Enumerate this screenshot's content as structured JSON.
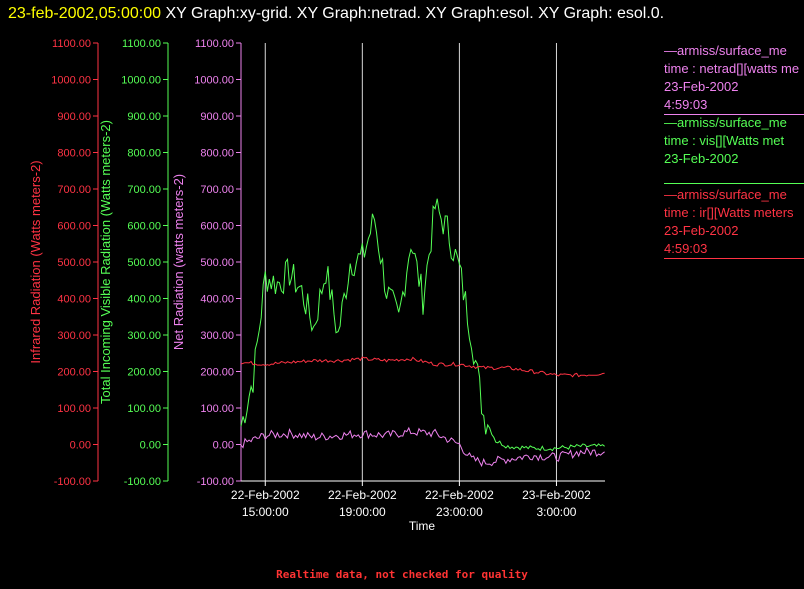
{
  "header": {
    "timestamp": "23-feb-2002,05:00:00",
    "title": " XY Graph:xy-grid.  XY Graph:netrad.  XY Graph:esol.  XY Graph: esol.0."
  },
  "legend": [
    {
      "line1": "—armiss/surface_me",
      "line2": "time : netrad[][watts me",
      "line3": "23-Feb-2002",
      "line4": "4:59:03",
      "color": "#ee82ee"
    },
    {
      "line1": "—armiss/surface_me",
      "line2": "time : vis[][Watts met",
      "line3": "23-Feb-2002",
      "line4": "",
      "color": "#55ff55"
    },
    {
      "line1": "—armiss/surface_me",
      "line2": "time : ir[][Watts meters",
      "line3": "23-Feb-2002",
      "line4": "4:59:03",
      "color": "#ff3344"
    }
  ],
  "footer": "Realtime data, not checked for quality",
  "chart_data": {
    "type": "line",
    "xlabel": "Time",
    "x_ticks": [
      "22-Feb-2002 15:00:00",
      "22-Feb-2002 19:00:00",
      "22-Feb-2002 23:00:00",
      "23-Feb-2002 3:00:00"
    ],
    "x_range": [
      "22-Feb-2002 14:00",
      "23-Feb-2002 5:00"
    ],
    "grid": "vertical lines at x ticks",
    "axes": [
      {
        "label": "Infrared Radiation (Watts meters-2)",
        "color": "#ff3344",
        "ylim": [
          -100,
          1100
        ]
      },
      {
        "label": "Total Incoming Visible Radiation (Watts meters-2)",
        "color": "#55ff55",
        "ylim": [
          -100,
          1100
        ]
      },
      {
        "label": "Net Radiation (watts meters-2)",
        "color": "#ee82ee",
        "ylim": [
          -100,
          1100
        ]
      }
    ],
    "y_ticks": [
      "-100.00",
      "0.00",
      "100.00",
      "200.00",
      "300.00",
      "400.00",
      "500.00",
      "600.00",
      "700.00",
      "800.00",
      "900.00",
      "1000.00",
      "1100.00"
    ],
    "series": [
      {
        "color": "#55ff55",
        "x": [
          "22-Feb 14:00",
          "22-Feb 14:30",
          "22-Feb 15:00",
          "22-Feb 15:30",
          "22-Feb 16:00",
          "22-Feb 16:30",
          "22-Feb 17:00",
          "22-Feb 17:30",
          "22-Feb 18:00",
          "22-Feb 18:30",
          "22-Feb 19:00",
          "22-Feb 19:30",
          "22-Feb 20:00",
          "22-Feb 20:30",
          "22-Feb 21:00",
          "22-Feb 21:30",
          "22-Feb 22:00",
          "22-Feb 22:30",
          "22-Feb 23:00",
          "22-Feb 23:30",
          "23-Feb 0:00",
          "23-Feb 0:30",
          "23-Feb 1:00",
          "23-Feb 2:00",
          "23-Feb 3:00",
          "23-Feb 4:00",
          "23-Feb 4:59"
        ],
        "values": [
          50,
          180,
          460,
          440,
          470,
          420,
          320,
          480,
          300,
          500,
          510,
          620,
          420,
          340,
          560,
          400,
          650,
          590,
          480,
          300,
          80,
          10,
          -5,
          -10,
          -10,
          -5,
          -5
        ]
      },
      {
        "color": "#ee82ee",
        "x": [
          "22-Feb 14:00",
          "22-Feb 15:00",
          "22-Feb 16:00",
          "22-Feb 17:00",
          "22-Feb 18:00",
          "22-Feb 19:00",
          "22-Feb 20:00",
          "22-Feb 21:00",
          "22-Feb 22:00",
          "22-Feb 23:00",
          "22-Feb 23:30",
          "23-Feb 0:00",
          "23-Feb 1:00",
          "23-Feb 2:00",
          "23-Feb 3:00",
          "23-Feb 4:00",
          "23-Feb 4:59"
        ],
        "values": [
          0,
          25,
          30,
          20,
          25,
          30,
          25,
          35,
          30,
          0,
          -40,
          -50,
          -40,
          -30,
          -35,
          -20,
          -20
        ]
      },
      {
        "color": "#ff3344",
        "x": [
          "22-Feb 14:00",
          "22-Feb 15:00",
          "22-Feb 16:00",
          "22-Feb 17:00",
          "22-Feb 18:00",
          "22-Feb 19:00",
          "22-Feb 20:00",
          "22-Feb 21:00",
          "22-Feb 22:00",
          "22-Feb 23:00",
          "23-Feb 0:00",
          "23-Feb 1:00",
          "23-Feb 2:00",
          "23-Feb 3:00",
          "23-Feb 4:00",
          "23-Feb 4:59"
        ],
        "values": [
          225,
          220,
          225,
          230,
          230,
          235,
          230,
          235,
          220,
          220,
          210,
          210,
          200,
          190,
          190,
          195
        ]
      }
    ]
  }
}
